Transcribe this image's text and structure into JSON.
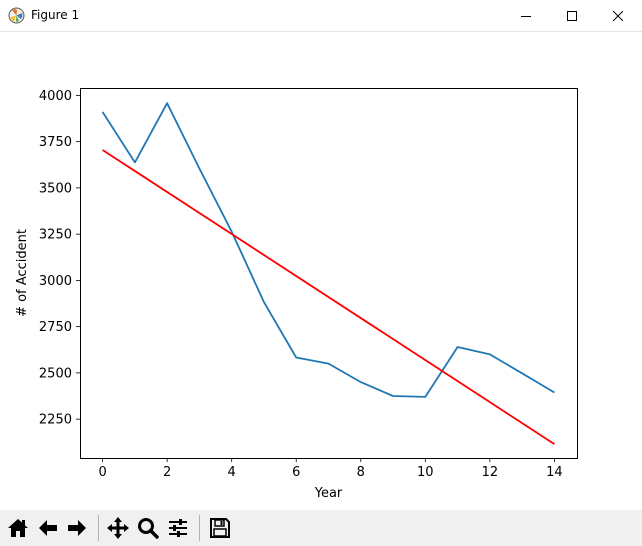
{
  "window": {
    "title": "Figure 1",
    "icon": "matplotlib-icon",
    "controls": [
      "minimize-icon",
      "maximize-icon",
      "close-icon"
    ]
  },
  "toolbar": {
    "buttons": [
      "home-icon",
      "back-icon",
      "forward-icon",
      "pan-icon",
      "zoom-icon",
      "configure-subplots-icon",
      "save-icon"
    ]
  },
  "chart_data": {
    "type": "line",
    "title": "",
    "xlabel": "Year",
    "ylabel": "# of Accident",
    "xlim": [
      -0.7,
      14.7
    ],
    "ylim": [
      2040,
      4040
    ],
    "xticks": [
      0,
      2,
      4,
      6,
      8,
      10,
      12,
      14
    ],
    "yticks": [
      2250,
      2500,
      2750,
      3000,
      3250,
      3500,
      3750,
      4000
    ],
    "grid": false,
    "series": [
      {
        "color": "#1f77b4",
        "x": [
          0,
          1,
          2,
          3,
          4,
          5,
          6,
          7,
          8,
          9,
          10,
          11,
          12,
          13,
          14
        ],
        "values": [
          3910,
          3638,
          3958,
          3605,
          3263,
          2882,
          2583,
          2550,
          2450,
          2375,
          2370,
          2640,
          2600,
          2498,
          2394
        ]
      },
      {
        "color": "#ff0000",
        "x": [
          0,
          14
        ],
        "values": [
          3705,
          2115
        ]
      }
    ]
  }
}
